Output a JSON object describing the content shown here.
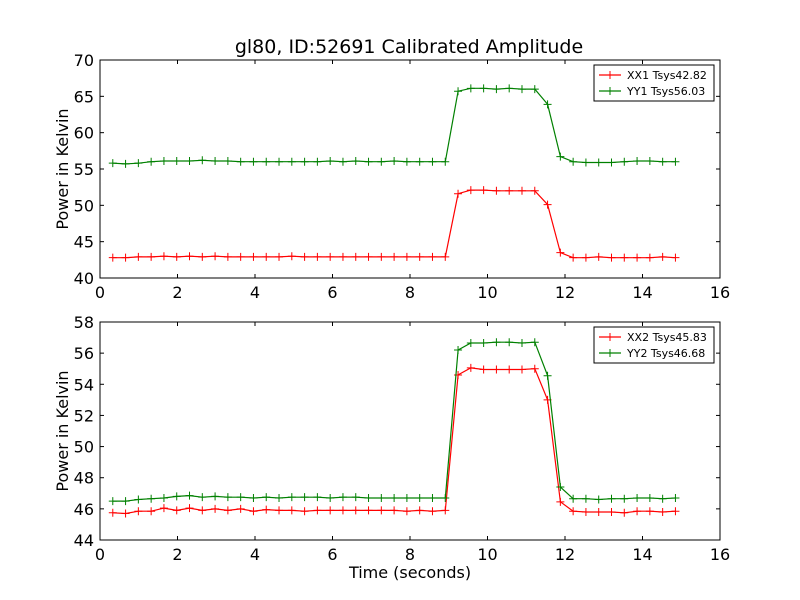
{
  "title": "gl80, ID:52691 Calibrated Amplitude",
  "colors": {
    "red": "#ff0000",
    "green": "#008000"
  },
  "chart_data": [
    {
      "type": "line",
      "title": "gl80, ID:52691 Calibrated Amplitude",
      "xlabel": "",
      "ylabel": "Power in Kelvin",
      "xlim": [
        0,
        16
      ],
      "ylim": [
        40,
        70
      ],
      "xticks": [
        "0",
        "2",
        "4",
        "6",
        "8",
        "10",
        "12",
        "14",
        "16"
      ],
      "yticks": [
        "40",
        "45",
        "50",
        "55",
        "60",
        "65",
        "70"
      ],
      "legend_position": "top-right",
      "marker": "plus",
      "series": [
        {
          "name": "XX1 Tsys42.82",
          "color": "#ff0000",
          "x": [
            0.33,
            0.66,
            0.99,
            1.32,
            1.65,
            1.98,
            2.31,
            2.64,
            2.97,
            3.3,
            3.63,
            3.96,
            4.29,
            4.62,
            4.95,
            5.28,
            5.61,
            5.94,
            6.27,
            6.6,
            6.93,
            7.26,
            7.59,
            7.92,
            8.25,
            8.58,
            8.91,
            9.24,
            9.57,
            9.9,
            10.23,
            10.56,
            10.89,
            11.22,
            11.55,
            11.88,
            12.21,
            12.54,
            12.87,
            13.2,
            13.53,
            13.86,
            14.19,
            14.52,
            14.85
          ],
          "y": [
            42.8,
            42.8,
            42.9,
            42.9,
            43.0,
            42.9,
            43.0,
            42.9,
            43.0,
            42.9,
            42.9,
            42.9,
            42.9,
            42.9,
            43.0,
            42.9,
            42.9,
            42.9,
            42.9,
            42.9,
            42.9,
            42.9,
            42.9,
            42.9,
            42.9,
            42.9,
            42.9,
            51.6,
            52.1,
            52.1,
            52.0,
            52.0,
            52.0,
            52.0,
            50.1,
            43.5,
            42.8,
            42.8,
            42.9,
            42.8,
            42.8,
            42.8,
            42.8,
            42.9,
            42.8
          ]
        },
        {
          "name": "YY1 Tsys56.03",
          "color": "#008000",
          "x": [
            0.33,
            0.66,
            0.99,
            1.32,
            1.65,
            1.98,
            2.31,
            2.64,
            2.97,
            3.3,
            3.63,
            3.96,
            4.29,
            4.62,
            4.95,
            5.28,
            5.61,
            5.94,
            6.27,
            6.6,
            6.93,
            7.26,
            7.59,
            7.92,
            8.25,
            8.58,
            8.91,
            9.24,
            9.57,
            9.9,
            10.23,
            10.56,
            10.89,
            11.22,
            11.55,
            11.88,
            12.21,
            12.54,
            12.87,
            13.2,
            13.53,
            13.86,
            14.19,
            14.52,
            14.85
          ],
          "y": [
            55.8,
            55.7,
            55.8,
            56.0,
            56.1,
            56.1,
            56.1,
            56.2,
            56.1,
            56.1,
            56.0,
            56.0,
            56.0,
            56.0,
            56.0,
            56.0,
            56.0,
            56.1,
            56.0,
            56.1,
            56.0,
            56.0,
            56.1,
            56.0,
            56.0,
            56.0,
            56.0,
            65.7,
            66.1,
            66.1,
            66.0,
            66.1,
            66.0,
            66.0,
            63.9,
            56.7,
            56.0,
            55.9,
            55.9,
            55.9,
            56.0,
            56.1,
            56.1,
            56.0,
            56.0
          ]
        }
      ]
    },
    {
      "type": "line",
      "title": "",
      "xlabel": "Time (seconds)",
      "ylabel": "Power in Kelvin",
      "xlim": [
        0,
        16
      ],
      "ylim": [
        44,
        58
      ],
      "xticks": [
        "0",
        "2",
        "4",
        "6",
        "8",
        "10",
        "12",
        "14",
        "16"
      ],
      "yticks": [
        "44",
        "46",
        "48",
        "50",
        "52",
        "54",
        "56",
        "58"
      ],
      "legend_position": "top-right",
      "marker": "plus",
      "series": [
        {
          "name": "XX2 Tsys45.83",
          "color": "#ff0000",
          "x": [
            0.33,
            0.66,
            0.99,
            1.32,
            1.65,
            1.98,
            2.31,
            2.64,
            2.97,
            3.3,
            3.63,
            3.96,
            4.29,
            4.62,
            4.95,
            5.28,
            5.61,
            5.94,
            6.27,
            6.6,
            6.93,
            7.26,
            7.59,
            7.92,
            8.25,
            8.58,
            8.91,
            9.24,
            9.57,
            9.9,
            10.23,
            10.56,
            10.89,
            11.22,
            11.55,
            11.88,
            12.21,
            12.54,
            12.87,
            13.2,
            13.53,
            13.86,
            14.19,
            14.52,
            14.85
          ],
          "y": [
            45.75,
            45.7,
            45.85,
            45.85,
            46.05,
            45.9,
            46.05,
            45.9,
            46.0,
            45.9,
            46.0,
            45.85,
            45.95,
            45.9,
            45.9,
            45.85,
            45.9,
            45.9,
            45.9,
            45.9,
            45.9,
            45.9,
            45.9,
            45.85,
            45.9,
            45.85,
            45.9,
            54.6,
            55.05,
            54.95,
            54.95,
            54.95,
            54.95,
            55.0,
            53.0,
            46.45,
            45.85,
            45.8,
            45.8,
            45.8,
            45.75,
            45.85,
            45.85,
            45.8,
            45.85
          ]
        },
        {
          "name": "YY2 Tsys46.68",
          "color": "#008000",
          "x": [
            0.33,
            0.66,
            0.99,
            1.32,
            1.65,
            1.98,
            2.31,
            2.64,
            2.97,
            3.3,
            3.63,
            3.96,
            4.29,
            4.62,
            4.95,
            5.28,
            5.61,
            5.94,
            6.27,
            6.6,
            6.93,
            7.26,
            7.59,
            7.92,
            8.25,
            8.58,
            8.91,
            9.24,
            9.57,
            9.9,
            10.23,
            10.56,
            10.89,
            11.22,
            11.55,
            11.88,
            12.21,
            12.54,
            12.87,
            13.2,
            13.53,
            13.86,
            14.19,
            14.52,
            14.85
          ],
          "y": [
            46.5,
            46.5,
            46.6,
            46.65,
            46.7,
            46.8,
            46.85,
            46.75,
            46.8,
            46.75,
            46.75,
            46.7,
            46.75,
            46.7,
            46.75,
            46.75,
            46.75,
            46.7,
            46.75,
            46.75,
            46.7,
            46.7,
            46.7,
            46.7,
            46.7,
            46.7,
            46.7,
            56.2,
            56.65,
            56.65,
            56.7,
            56.7,
            56.65,
            56.7,
            54.55,
            47.4,
            46.65,
            46.65,
            46.6,
            46.65,
            46.65,
            46.7,
            46.7,
            46.65,
            46.7
          ]
        }
      ]
    }
  ]
}
